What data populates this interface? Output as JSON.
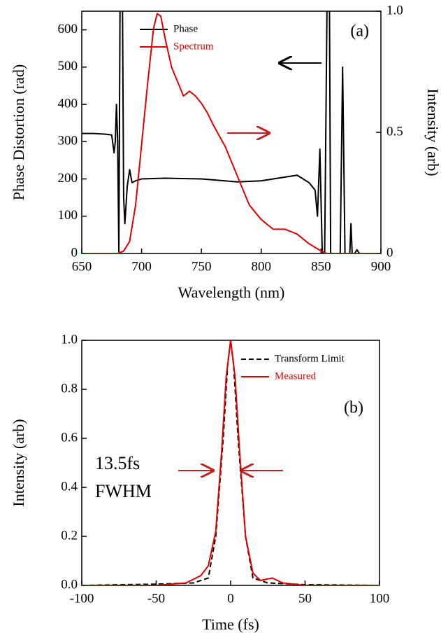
{
  "chart_data": [
    {
      "type": "line",
      "xlabel": "Wavelength (nm)",
      "ylabel": "Phase Distortion (rad)",
      "y2label": "Intensity (arb)",
      "annotation": "(a)",
      "xlim": [
        650,
        900
      ],
      "xticks": [
        650,
        700,
        750,
        800,
        850,
        900
      ],
      "ylim": [
        0,
        650
      ],
      "yticks": [
        0,
        100,
        200,
        300,
        400,
        500,
        600
      ],
      "y2lim": [
        0,
        1
      ],
      "y2ticks": [
        0,
        0.5,
        {
          "value": 1,
          "label": "1.0"
        }
      ],
      "legend": "upper center",
      "series": [
        {
          "name": "Phase",
          "color": "#000000",
          "x": [
            650,
            660,
            670,
            675,
            677,
            678,
            679,
            680,
            681,
            682,
            684,
            685,
            686,
            688,
            690,
            692,
            695,
            700,
            720,
            750,
            780,
            800,
            820,
            830,
            840,
            845,
            847,
            849,
            851,
            853,
            855,
            857,
            858,
            862,
            864,
            866,
            868,
            870,
            872,
            874,
            875,
            876,
            878,
            880,
            882,
            884
          ],
          "values": [
            322,
            322,
            320,
            318,
            270,
            300,
            400,
            300,
            0,
            680,
            680,
            150,
            80,
            180,
            225,
            190,
            195,
            200,
            202,
            200,
            192,
            195,
            205,
            210,
            190,
            170,
            100,
            280,
            0,
            0,
            680,
            680,
            0,
            0,
            0,
            0,
            500,
            0,
            0,
            0,
            80,
            0,
            0,
            10,
            0,
            0
          ]
        },
        {
          "name": "Spectrum",
          "color": "#e00000",
          "axis": "y2",
          "x": [
            650,
            680,
            685,
            690,
            695,
            700,
            705,
            710,
            713,
            716,
            720,
            725,
            730,
            735,
            740,
            745,
            750,
            755,
            760,
            770,
            780,
            790,
            800,
            810,
            815,
            820,
            830,
            840,
            850,
            855,
            900
          ],
          "values": [
            0,
            0,
            0.01,
            0.05,
            0.2,
            0.45,
            0.7,
            0.93,
            0.99,
            0.98,
            0.88,
            0.77,
            0.71,
            0.65,
            0.67,
            0.65,
            0.62,
            0.58,
            0.53,
            0.44,
            0.32,
            0.2,
            0.14,
            0.1,
            0.1,
            0.1,
            0.08,
            0.04,
            0.01,
            0,
            0
          ]
        }
      ]
    },
    {
      "type": "line",
      "xlabel": "Time (fs)",
      "ylabel": "Intensity (arb)",
      "annotation": "(b)",
      "annotation2": "13.5fs",
      "annotation3": "FWHM",
      "xlim": [
        -100,
        100
      ],
      "xticks": [
        -100,
        -50,
        0,
        50,
        100
      ],
      "ylim": [
        0,
        1
      ],
      "yticks": [
        {
          "value": 0,
          "label": "0.0"
        },
        0.2,
        0.4,
        0.6,
        0.8,
        {
          "value": 1,
          "label": "1.0"
        }
      ],
      "legend": "upper right",
      "series": [
        {
          "name": "Transform Limit",
          "color": "#000000",
          "dash": true,
          "x": [
            -100,
            -50,
            -25,
            -15,
            -10,
            -5,
            -2,
            0,
            2,
            5,
            10,
            15,
            25,
            50,
            100
          ],
          "values": [
            0,
            0.005,
            0.01,
            0.03,
            0.2,
            0.6,
            0.9,
            1.0,
            0.9,
            0.6,
            0.2,
            0.03,
            0.01,
            0.003,
            0
          ]
        },
        {
          "name": "Measured",
          "color": "#e00000",
          "x": [
            -100,
            -50,
            -30,
            -20,
            -15,
            -10,
            -6,
            -3,
            0,
            3,
            6,
            10,
            15,
            20,
            28,
            35,
            50,
            100
          ],
          "values": [
            0,
            0,
            0.01,
            0.04,
            0.08,
            0.22,
            0.55,
            0.85,
            1.0,
            0.85,
            0.55,
            0.2,
            0.05,
            0.02,
            0.03,
            0.01,
            0,
            0
          ]
        }
      ]
    }
  ]
}
